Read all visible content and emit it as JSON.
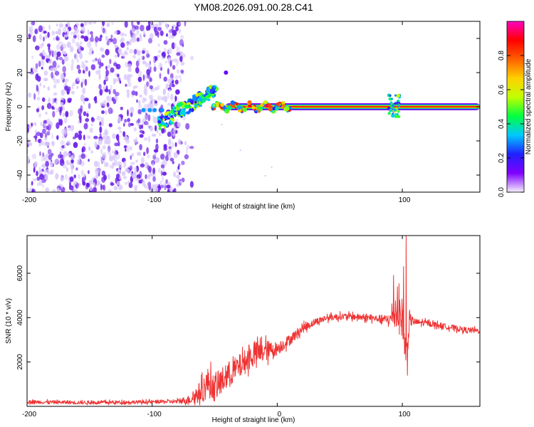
{
  "title": "YM08.2026.091.00.28.C41",
  "colors": {
    "snr_line": "#ee3333",
    "axis": "#000000",
    "scatter_strong": "#6a1ee8",
    "scatter_weak": "#d8c8fa",
    "tube_center": "#ff2020"
  },
  "chart_data": [
    {
      "type": "heatmap",
      "name": "spectrogram",
      "xlabel": "Height of straight line (km)",
      "ylabel": "Frequency (Hz)",
      "xlim": [
        -200,
        162
      ],
      "ylim": [
        -50,
        50
      ],
      "xticks": [
        -200,
        -100,
        0,
        100
      ],
      "xtick_labels": [
        "-200",
        "-100",
        "",
        "100"
      ],
      "yticks": [
        -40,
        -20,
        0,
        20,
        40
      ],
      "ytick_labels": [
        "-40",
        "-20",
        "0",
        "20",
        "40"
      ],
      "colorbar": {
        "label": "Normalized spectral amplitude",
        "range": [
          0,
          1
        ],
        "ticks": [
          0,
          0.2,
          0.4,
          0.6,
          0.8
        ],
        "tick_labels": [
          "0.0",
          "0.2",
          "0.4",
          "0.6",
          "0.8"
        ],
        "colormap": [
          "#f4f0ff",
          "#8000ff",
          "#2020ff",
          "#00c8ff",
          "#00ff40",
          "#c0ff00",
          "#ffd000",
          "#ff6000",
          "#ff0000",
          "#ff00c0"
        ]
      },
      "features": [
        {
          "type": "noise_cloud",
          "x_range": [
            -200,
            -75
          ],
          "f_range": [
            -50,
            50
          ],
          "amplitude": 0.15
        },
        {
          "type": "chirp_band",
          "x_range": [
            -95,
            -55
          ],
          "f_range": [
            -15,
            15
          ],
          "amplitude": 0.35
        },
        {
          "type": "steady_band",
          "x_range": [
            -50,
            162
          ],
          "f": 0,
          "amplitude": 1.0
        },
        {
          "type": "burst",
          "x": 95,
          "f_range": [
            -6,
            8
          ],
          "amplitude": 0.5
        }
      ]
    },
    {
      "type": "line",
      "name": "snr",
      "xlabel": "Height of straight line (km)",
      "ylabel": "SNR (10 * v/v)",
      "xlim": [
        -200,
        162
      ],
      "ylim": [
        0,
        7700
      ],
      "xticks": [
        -200,
        -100,
        0,
        100
      ],
      "xtick_labels": [
        "-200",
        "-100",
        "0",
        "100"
      ],
      "yticks": [
        2000,
        4000,
        6000
      ],
      "ytick_labels": [
        "2000",
        "4000",
        "6000"
      ],
      "envelope": {
        "x": [
          -200,
          -150,
          -100,
          -80,
          -70,
          -60,
          -55,
          -50,
          -40,
          -30,
          -20,
          -10,
          0,
          10,
          20,
          30,
          40,
          50,
          60,
          70,
          80,
          90,
          95,
          100,
          103,
          106,
          110,
          120,
          130,
          140,
          150,
          162
        ],
        "y": [
          200,
          170,
          200,
          220,
          300,
          700,
          1100,
          800,
          1400,
          1800,
          2300,
          2500,
          2600,
          3000,
          3500,
          3800,
          4000,
          4050,
          4050,
          4000,
          3950,
          3900,
          4300,
          4000,
          2200,
          3900,
          3800,
          3750,
          3650,
          3550,
          3450,
          3400
        ],
        "noise": [
          80,
          80,
          80,
          100,
          200,
          550,
          700,
          600,
          600,
          550,
          550,
          500,
          300,
          250,
          200,
          160,
          150,
          150,
          150,
          150,
          160,
          250,
          900,
          900,
          800,
          300,
          150,
          130,
          130,
          130,
          130,
          120
        ]
      },
      "spikes": [
        {
          "x": 93,
          "y": 5900
        },
        {
          "x": 96,
          "y": 5400
        },
        {
          "x": 101,
          "y": 6300
        },
        {
          "x": 103,
          "y": 7700
        },
        {
          "x": 104,
          "y": 1400
        }
      ]
    }
  ]
}
